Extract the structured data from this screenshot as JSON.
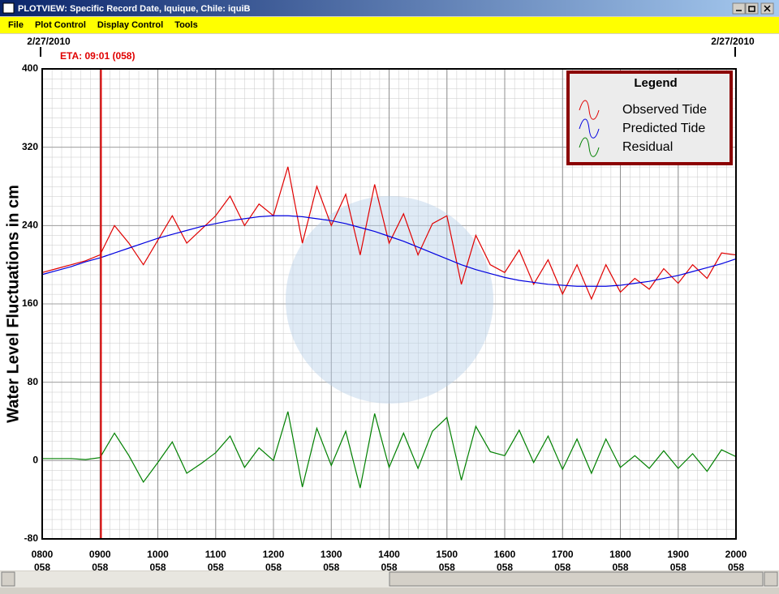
{
  "window": {
    "title": "PLOTVIEW: Specific Record Date, Iquique, Chile: iquiB",
    "menu": [
      "File",
      "Plot Control",
      "Display Control",
      "Tools"
    ]
  },
  "chart_data": {
    "type": "line",
    "date_left": "2/27/2010",
    "date_right": "2/27/2010",
    "ylabel": "Water Level Fluctuations in cm",
    "legend_title": "Legend",
    "x": [
      8,
      8.25,
      8.5,
      8.75,
      9,
      9.25,
      9.5,
      9.75,
      10,
      10.25,
      10.5,
      10.75,
      11,
      11.25,
      11.5,
      11.75,
      12,
      12.25,
      12.5,
      12.75,
      13,
      13.25,
      13.5,
      13.75,
      14,
      14.25,
      14.5,
      14.75,
      15,
      15.25,
      15.5,
      15.75,
      16,
      16.25,
      16.5,
      16.75,
      17,
      17.25,
      17.5,
      17.75,
      18,
      18.25,
      18.5,
      18.75,
      19,
      19.25,
      19.5,
      19.75,
      20
    ],
    "series": [
      {
        "name": "Observed Tide",
        "color": "#e00000",
        "values": [
          192,
          196,
          200,
          204,
          210,
          240,
          222,
          200,
          225,
          250,
          222,
          236,
          250,
          270,
          240,
          262,
          250,
          300,
          222,
          280,
          240,
          272,
          210,
          282,
          222,
          252,
          210,
          242,
          250,
          180,
          230,
          200,
          192,
          215,
          180,
          205,
          170,
          200,
          165,
          200,
          172,
          186,
          175,
          196,
          181,
          200,
          186,
          212,
          210
        ]
      },
      {
        "name": "Predicted Tide",
        "color": "#0000e0",
        "values": [
          190,
          194,
          198,
          203,
          207,
          212,
          217,
          222,
          227,
          231,
          235,
          239,
          242,
          245,
          247,
          249,
          250,
          250,
          249,
          247,
          245,
          242,
          238,
          234,
          229,
          224,
          218,
          212,
          206,
          200,
          195,
          191,
          187,
          184,
          182,
          180,
          179,
          178,
          178,
          178,
          179,
          181,
          183,
          186,
          189,
          193,
          197,
          201,
          206
        ]
      },
      {
        "name": "Residual",
        "color": "#008000",
        "values": [
          2,
          2,
          2,
          1,
          3,
          28,
          5,
          -22,
          -2,
          19,
          -13,
          -3,
          8,
          25,
          -7,
          13,
          0,
          50,
          -27,
          33,
          -5,
          30,
          -28,
          48,
          -7,
          28,
          -8,
          30,
          44,
          -20,
          35,
          9,
          5,
          31,
          -2,
          25,
          -9,
          22,
          -13,
          22,
          -7,
          5,
          -8,
          10,
          -8,
          7,
          -11,
          11,
          4
        ]
      }
    ],
    "xlim": [
      8,
      20
    ],
    "ylim": [
      -80,
      400
    ],
    "yticks": [
      -80,
      0,
      80,
      160,
      240,
      320,
      400
    ],
    "xticks": [
      {
        "value": 8,
        "label": "0800"
      },
      {
        "value": 9,
        "label": "0900"
      },
      {
        "value": 10,
        "label": "1000"
      },
      {
        "value": 11,
        "label": "1100"
      },
      {
        "value": 12,
        "label": "1200"
      },
      {
        "value": 13,
        "label": "1300"
      },
      {
        "value": 14,
        "label": "1400"
      },
      {
        "value": 15,
        "label": "1500"
      },
      {
        "value": 16,
        "label": "1600"
      },
      {
        "value": 17,
        "label": "1700"
      },
      {
        "value": 18,
        "label": "1800"
      },
      {
        "value": 19,
        "label": "1900"
      },
      {
        "value": 20,
        "label": "2000"
      }
    ],
    "xtick_days": [
      "058",
      "058",
      "058",
      "058",
      "058",
      "058",
      "058",
      "058",
      "058",
      "058",
      "058",
      "058",
      "058"
    ],
    "annotations": [
      {
        "x": 9.0167,
        "label": "ETA: 09:01 (058)",
        "color": "#e00000"
      }
    ],
    "grid": true
  }
}
